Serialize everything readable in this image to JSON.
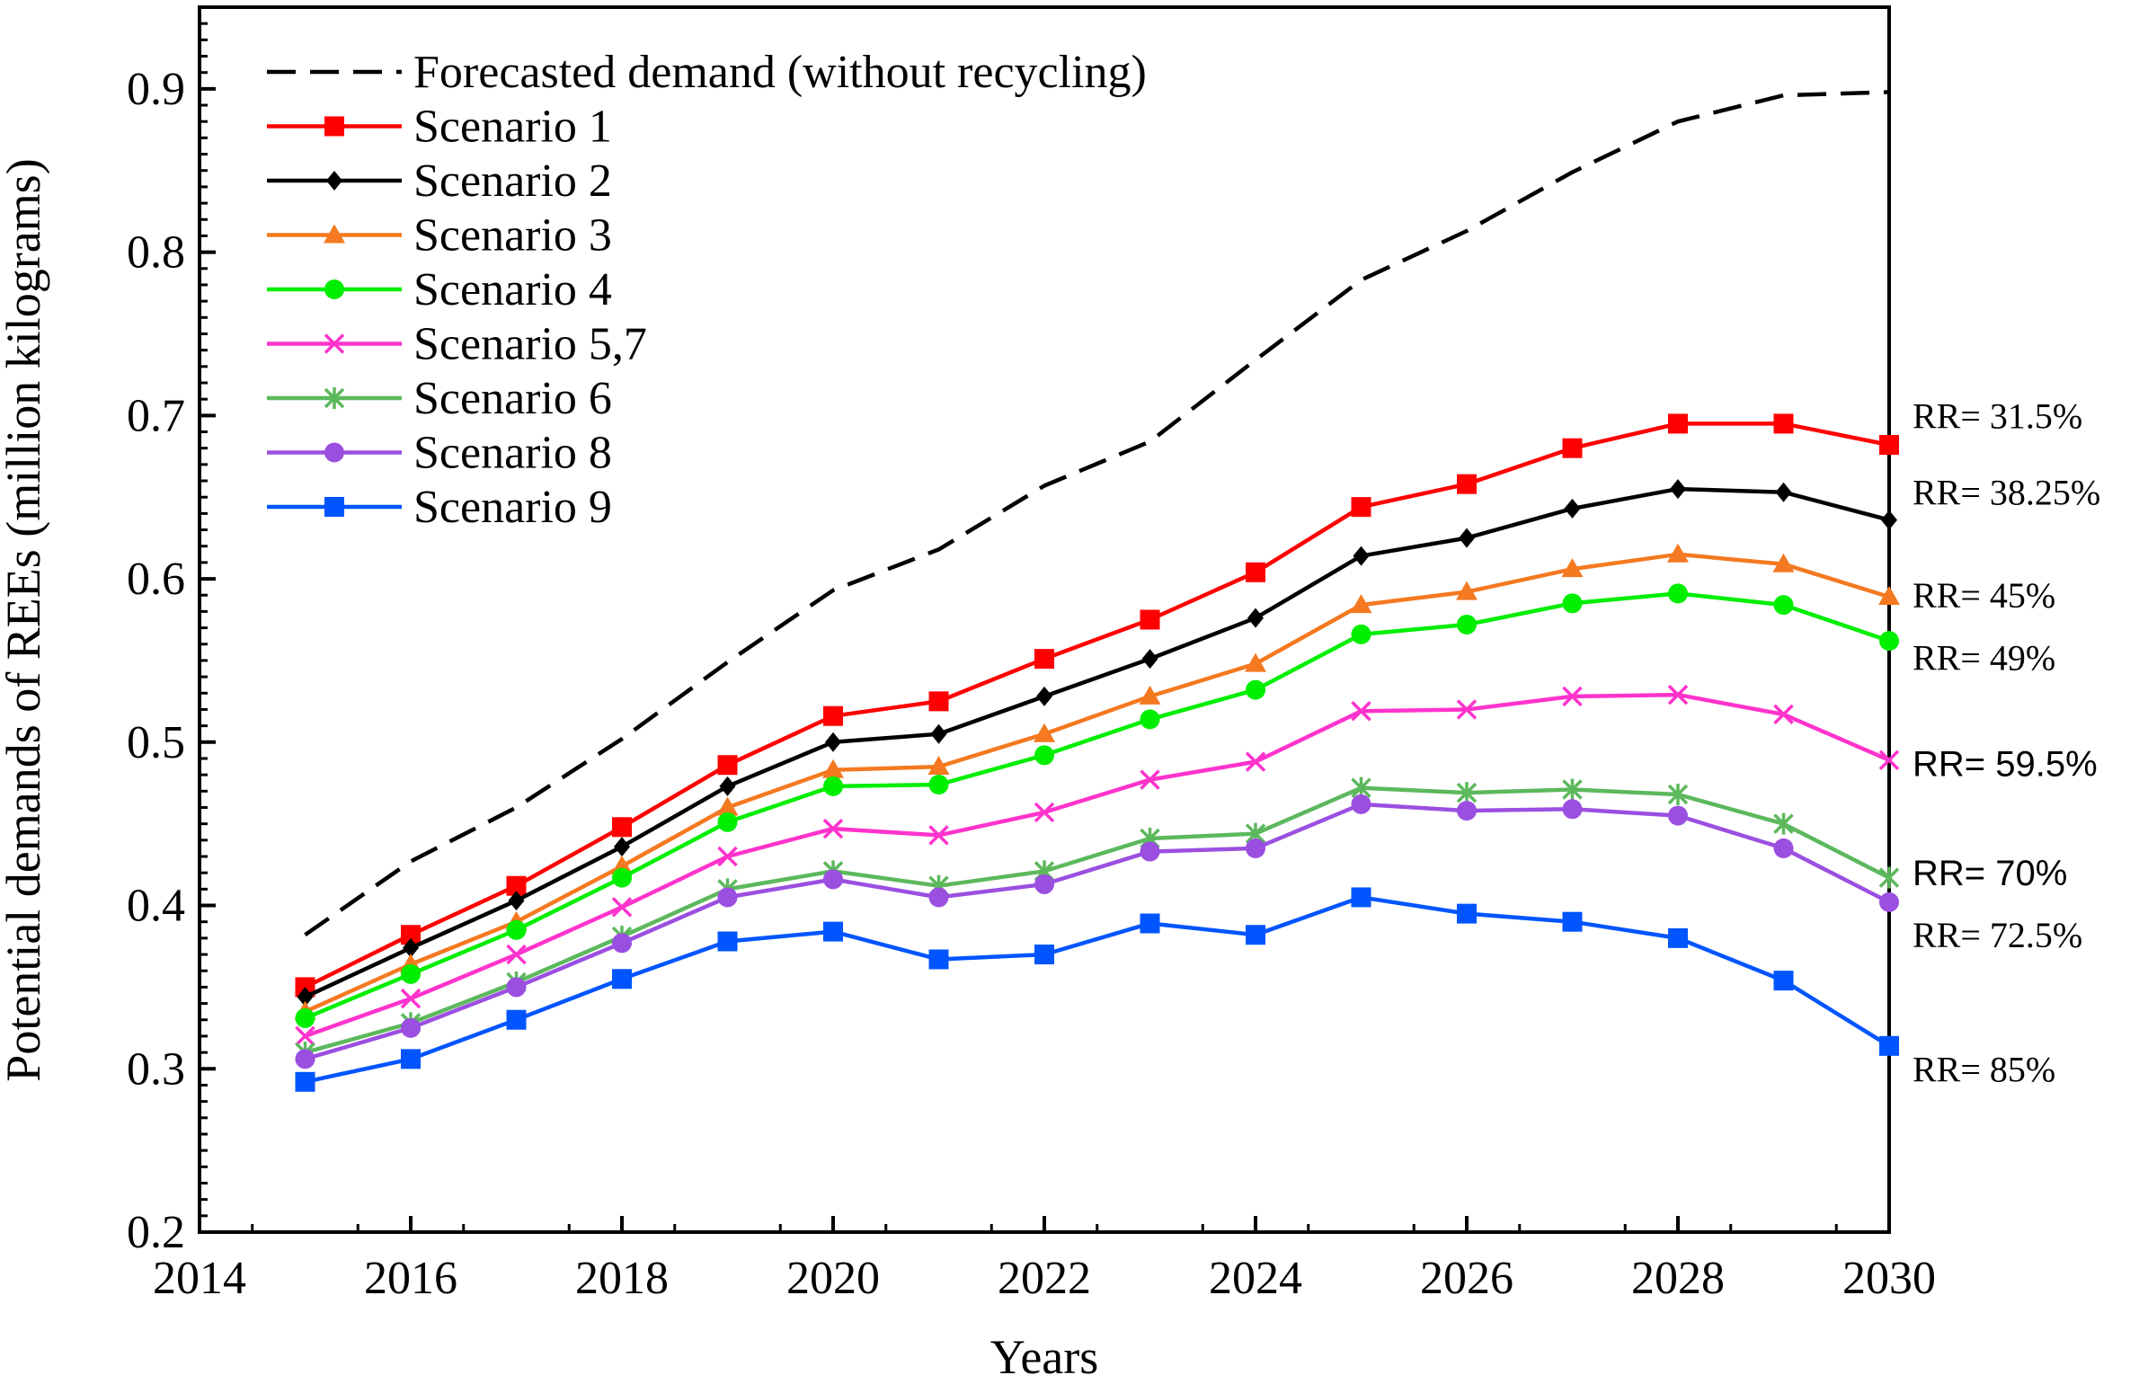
{
  "chart_data": {
    "type": "line",
    "xlabel": "Years",
    "ylabel": "Potential demands of REEs (million kilograms)",
    "xlim": [
      2014,
      2030
    ],
    "ylim": [
      0.2,
      0.95
    ],
    "x_ticks": [
      "2014",
      "2016",
      "2018",
      "2020",
      "2022",
      "2024",
      "2026",
      "2028",
      "2030"
    ],
    "y_ticks": [
      "0.2",
      "0.3",
      "0.4",
      "0.5",
      "0.6",
      "0.7",
      "0.8",
      "0.9"
    ],
    "legend_placement": "top-left",
    "x": [
      2015,
      2016,
      2017,
      2018,
      2019,
      2020,
      2021,
      2022,
      2023,
      2024,
      2025,
      2026,
      2027,
      2028,
      2029,
      2030
    ],
    "series": [
      {
        "name": "Forecasted demand (without recycling)",
        "color": "#000000",
        "marker": "none",
        "dash": "dashed",
        "values": [
          0.382,
          0.427,
          0.46,
          0.502,
          0.549,
          0.593,
          0.618,
          0.657,
          0.684,
          0.734,
          0.783,
          0.813,
          0.849,
          0.88,
          0.896,
          0.898
        ]
      },
      {
        "name": "Scenario 1",
        "color": "#ff0000",
        "marker": "square",
        "values": [
          0.35,
          0.382,
          0.412,
          0.448,
          0.486,
          0.516,
          0.525,
          0.551,
          0.575,
          0.604,
          0.644,
          0.658,
          0.68,
          0.695,
          0.695,
          0.682
        ]
      },
      {
        "name": "Scenario 2",
        "color": "#000000",
        "marker": "diamond",
        "values": [
          0.344,
          0.374,
          0.403,
          0.436,
          0.473,
          0.5,
          0.505,
          0.528,
          0.551,
          0.576,
          0.614,
          0.625,
          0.643,
          0.655,
          0.653,
          0.636
        ]
      },
      {
        "name": "Scenario 3",
        "color": "#f47920",
        "marker": "triangle",
        "values": [
          0.335,
          0.364,
          0.39,
          0.424,
          0.46,
          0.483,
          0.485,
          0.505,
          0.528,
          0.548,
          0.584,
          0.592,
          0.606,
          0.615,
          0.609,
          0.589
        ]
      },
      {
        "name": "Scenario 4",
        "color": "#00ee00",
        "marker": "circle",
        "values": [
          0.331,
          0.358,
          0.385,
          0.417,
          0.451,
          0.473,
          0.474,
          0.492,
          0.514,
          0.532,
          0.566,
          0.572,
          0.585,
          0.591,
          0.584,
          0.562
        ]
      },
      {
        "name": "Scenario 5,7",
        "color": "#ff33cc",
        "marker": "x",
        "values": [
          0.32,
          0.343,
          0.37,
          0.399,
          0.43,
          0.447,
          0.443,
          0.457,
          0.477,
          0.488,
          0.519,
          0.52,
          0.528,
          0.529,
          0.517,
          0.489
        ]
      },
      {
        "name": "Scenario 6",
        "color": "#5cb85c",
        "marker": "asterisk",
        "values": [
          0.31,
          0.328,
          0.353,
          0.381,
          0.41,
          0.421,
          0.412,
          0.421,
          0.441,
          0.444,
          0.472,
          0.469,
          0.471,
          0.468,
          0.45,
          0.417
        ]
      },
      {
        "name": "Scenario 8",
        "color": "#9b4fe0",
        "marker": "circle",
        "values": [
          0.306,
          0.325,
          0.35,
          0.377,
          0.405,
          0.416,
          0.405,
          0.413,
          0.433,
          0.435,
          0.462,
          0.458,
          0.459,
          0.455,
          0.435,
          0.402
        ]
      },
      {
        "name": "Scenario 9",
        "color": "#0055ff",
        "marker": "square",
        "values": [
          0.292,
          0.306,
          0.33,
          0.355,
          0.378,
          0.384,
          0.367,
          0.37,
          0.389,
          0.382,
          0.405,
          0.395,
          0.39,
          0.38,
          0.354,
          0.314
        ]
      }
    ],
    "annotations": [
      {
        "text": "RR= 31.5%",
        "y": 0.7,
        "font": "serif"
      },
      {
        "text": "RR= 38.25%",
        "y": 0.653,
        "font": "serif"
      },
      {
        "text": "RR= 45%",
        "y": 0.59,
        "font": "serif"
      },
      {
        "text": "RR= 49%",
        "y": 0.552,
        "font": "serif"
      },
      {
        "text": "RR= 59.5%",
        "y": 0.487,
        "font": "sans"
      },
      {
        "text": "RR= 70%",
        "y": 0.42,
        "font": "sans"
      },
      {
        "text": "RR= 72.5%",
        "y": 0.382,
        "font": "serif"
      },
      {
        "text": "RR= 85%",
        "y": 0.3,
        "font": "serif"
      }
    ]
  }
}
